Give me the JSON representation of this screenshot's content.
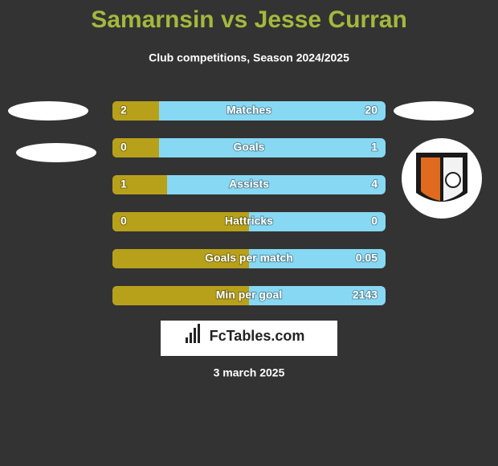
{
  "header": {
    "title": "Samarnsin vs Jesse Curran",
    "subtitle": "Club competitions, Season 2024/2025"
  },
  "rows": [
    {
      "label": "Matches",
      "left": "2",
      "right": "20"
    },
    {
      "label": "Goals",
      "left": "0",
      "right": "1"
    },
    {
      "label": "Assists",
      "left": "1",
      "right": "4"
    },
    {
      "label": "Hattricks",
      "left": "0",
      "right": "0"
    },
    {
      "label": "Goals per match",
      "right": "0.05"
    },
    {
      "label": "Min per goal",
      "right": "2143"
    }
  ],
  "brand": "FcTables.com",
  "date": "3 march 2025"
}
